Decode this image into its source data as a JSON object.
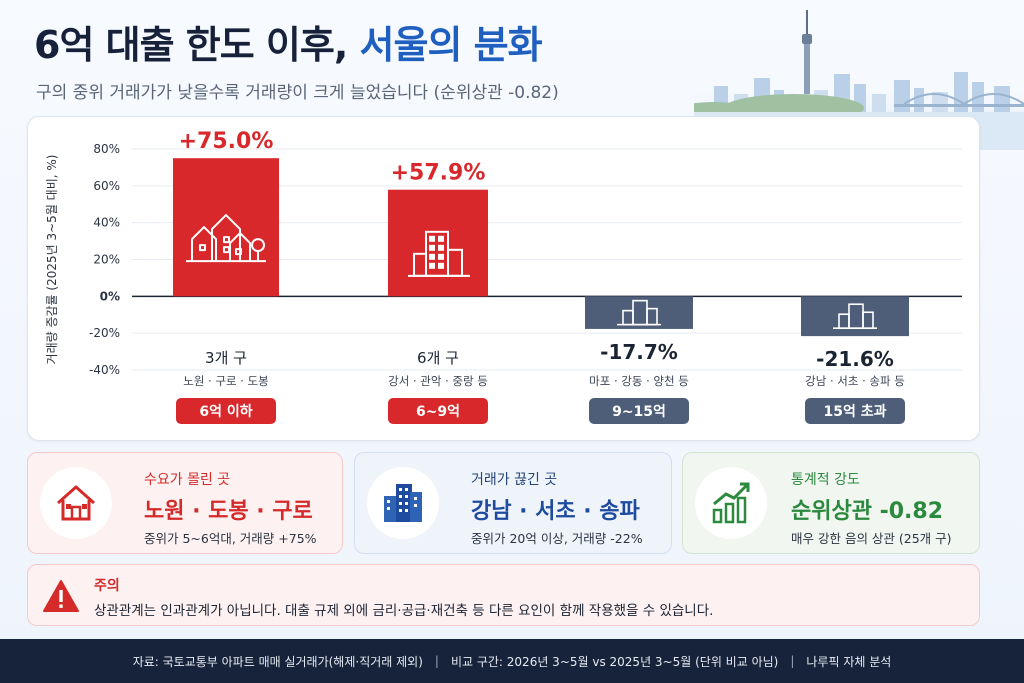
{
  "header": {
    "title_main": "6억 대출 한도 이후,",
    "title_accent": " 서울의 분화",
    "subtitle": "구의 중위 거래가가 낮을수록 거래량이 크게 늘었습니다 (순위상관 -0.82)"
  },
  "colors": {
    "increase": "#d8282b",
    "decrease": "#4e5e79",
    "accent_blue": "#1f5fc0",
    "green": "#2b8a3e"
  },
  "chart_data": {
    "type": "bar",
    "ylabel": "거래량 증감률 (2025년 3~5월 대비, %)",
    "ylim": [
      -40,
      80
    ],
    "yticks": [
      "80%",
      "60%",
      "40%",
      "20%",
      "0%",
      "-20%",
      "-40%"
    ],
    "ytick_values": [
      80,
      60,
      40,
      20,
      0,
      -20,
      -40
    ],
    "grid": true,
    "categories": [
      "3개 구",
      "6개 구",
      "",
      ""
    ],
    "values": [
      75.0,
      57.9,
      -17.7,
      -21.6
    ],
    "value_labels": [
      "+75.0%",
      "+57.9%",
      "-17.7%",
      "-21.6%"
    ],
    "district_labels": [
      "3개 구",
      "6개 구",
      "",
      ""
    ],
    "district_names": [
      "노원 · 구로 · 도봉",
      "강서 · 관악 · 중랑 등",
      "마포 · 강동 · 양천 등",
      "강남 · 서초 · 송파 등"
    ],
    "price_bands": [
      "6억 이하",
      "6~9억",
      "9~15억",
      "15억 초과"
    ],
    "bar_icons": [
      "houses-icon",
      "apartment-icon",
      "building-icon",
      "tower-icon"
    ]
  },
  "panels": [
    {
      "label": "수요가 몰린 곳",
      "main": "노원 · 도봉 · 구로",
      "desc": "중위가 5~6억대, 거래량 +75%",
      "icon": "house-icon"
    },
    {
      "label": "거래가 끊긴 곳",
      "main": "강남 · 서초 · 송파",
      "desc": "중위가 20억 이상, 거래량 -22%",
      "icon": "office-building-icon"
    },
    {
      "label": "통계적 강도",
      "main": "순위상관 -0.82",
      "desc": "매우 강한 음의 상관 (25개 구)",
      "icon": "trend-chart-icon"
    }
  ],
  "caution": {
    "title": "주의",
    "text": "상관관계는 인과관계가 아닙니다. 대출 규제 외에 금리·공급·재건축 등 다른 요인이 함께 작용했을 수 있습니다.",
    "icon": "warning-icon"
  },
  "footer": {
    "source": "자료: 국토교통부 아파트 매매 실거래가(해제·직거래 제외)",
    "period": "비교 구간: 2026년 3~5월 vs 2025년 3~5월 (단위 비교 아님)",
    "analysis": "나루픽 자체 분석"
  }
}
